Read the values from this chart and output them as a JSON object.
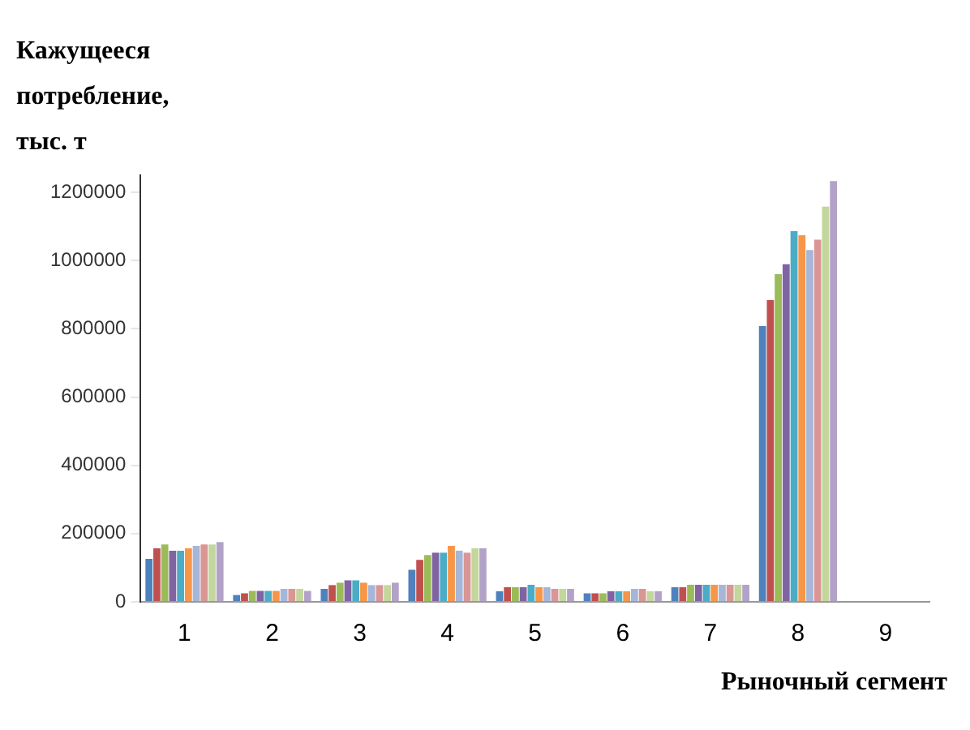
{
  "chart_data": {
    "type": "bar",
    "xlabel": "Рыночный сегмент",
    "ylabel": "Кажущееся потребление, тыс. т",
    "categories": [
      "1",
      "2",
      "3",
      "4",
      "5",
      "6",
      "7",
      "8",
      "9"
    ],
    "ylim": [
      0,
      1250000
    ],
    "yticks": [
      0,
      200000,
      400000,
      600000,
      800000,
      1000000,
      1200000
    ],
    "grid": false,
    "legend": false,
    "series": [
      {
        "color": "#4f81bd",
        "values": [
          126000,
          20000,
          38000,
          94000,
          31000,
          25000,
          43000,
          808000,
          0
        ]
      },
      {
        "color": "#c0504d",
        "values": [
          157000,
          25000,
          49000,
          123000,
          43000,
          25000,
          43000,
          884000,
          0
        ]
      },
      {
        "color": "#9bbb59",
        "values": [
          168000,
          32000,
          56000,
          137000,
          43000,
          25000,
          50000,
          960000,
          0
        ]
      },
      {
        "color": "#8064a2",
        "values": [
          150000,
          32000,
          63000,
          144000,
          43000,
          31000,
          50000,
          989000,
          0
        ]
      },
      {
        "color": "#4bacc6",
        "values": [
          150000,
          32000,
          63000,
          144000,
          50000,
          31000,
          50000,
          1086000,
          0
        ]
      },
      {
        "color": "#f79646",
        "values": [
          157000,
          32000,
          56000,
          164000,
          43000,
          31000,
          50000,
          1074000,
          0
        ]
      },
      {
        "color": "#a5b6d9",
        "values": [
          164000,
          38000,
          49000,
          150000,
          43000,
          38000,
          50000,
          1031000,
          0
        ]
      },
      {
        "color": "#d99694",
        "values": [
          168000,
          38000,
          49000,
          144000,
          38000,
          38000,
          50000,
          1061000,
          0
        ]
      },
      {
        "color": "#c3d69b",
        "values": [
          168000,
          38000,
          49000,
          157000,
          38000,
          31000,
          50000,
          1158000,
          0
        ]
      },
      {
        "color": "#b3a2c7",
        "values": [
          175000,
          32000,
          56000,
          157000,
          38000,
          31000,
          50000,
          1233000,
          0
        ]
      }
    ]
  }
}
